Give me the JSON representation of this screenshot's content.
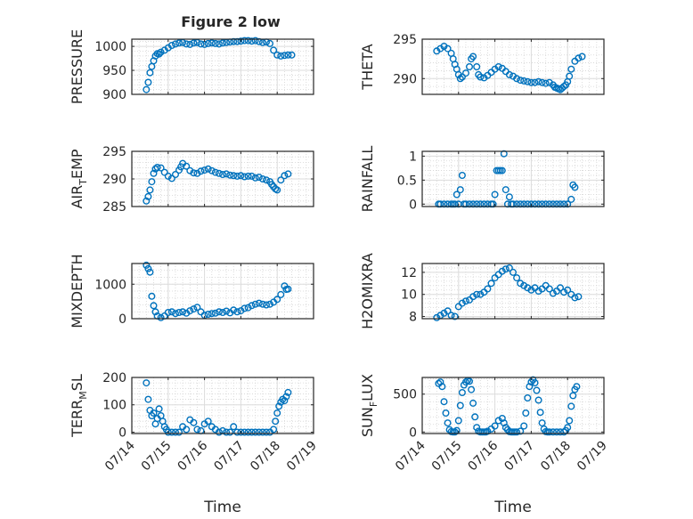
{
  "figure": {
    "title": "Figure 2 low"
  },
  "chart_data": [
    {
      "id": "pressure",
      "type": "scatter",
      "title": "Figure 2 low",
      "ylabel": {
        "main": "PRESSURE"
      },
      "yticks": [
        900,
        950,
        1000
      ],
      "ytick_labels": [
        "900",
        "950",
        "1000"
      ],
      "ylim": [
        900,
        1015
      ],
      "x": [
        14.4,
        14.45,
        14.5,
        14.55,
        14.6,
        14.65,
        14.7,
        14.75,
        14.8,
        14.9,
        15.0,
        15.1,
        15.2,
        15.3,
        15.4,
        15.5,
        15.6,
        15.7,
        15.8,
        15.9,
        16.0,
        16.1,
        16.2,
        16.3,
        16.4,
        16.5,
        16.6,
        16.7,
        16.8,
        16.9,
        17.0,
        17.1,
        17.2,
        17.3,
        17.4,
        17.5,
        17.6,
        17.7,
        17.8,
        17.9,
        18.0,
        18.1,
        18.2,
        18.3,
        18.4
      ],
      "y": [
        910,
        925,
        945,
        958,
        970,
        980,
        985,
        984,
        988,
        992,
        997,
        1002,
        1005,
        1007,
        1008,
        1005,
        1004,
        1007,
        1008,
        1005,
        1004,
        1006,
        1007,
        1006,
        1005,
        1007,
        1008,
        1009,
        1010,
        1010,
        1011,
        1012,
        1012,
        1011,
        1012,
        1010,
        1008,
        1009,
        1006,
        992,
        982,
        980,
        981,
        982,
        982
      ],
      "series_color": "#0072BD"
    },
    {
      "id": "theta",
      "type": "scatter",
      "ylabel": {
        "main": "THETA"
      },
      "yticks": [
        290,
        295
      ],
      "ytick_labels": [
        "290",
        "295"
      ],
      "ylim": [
        288,
        295
      ],
      "x": [
        14.4,
        14.5,
        14.6,
        14.7,
        14.8,
        14.85,
        14.9,
        14.95,
        15.0,
        15.05,
        15.1,
        15.2,
        15.3,
        15.35,
        15.4,
        15.5,
        15.55,
        15.6,
        15.7,
        15.8,
        15.9,
        16.0,
        16.1,
        16.2,
        16.3,
        16.4,
        16.5,
        16.6,
        16.7,
        16.8,
        16.9,
        17.0,
        17.1,
        17.2,
        17.3,
        17.4,
        17.5,
        17.6,
        17.65,
        17.7,
        17.75,
        17.8,
        17.85,
        17.9,
        17.95,
        18.0,
        18.05,
        18.1,
        18.2,
        18.3,
        18.4
      ],
      "y": [
        293.5,
        293.8,
        294.1,
        293.8,
        293.2,
        292.5,
        291.8,
        291.2,
        290.5,
        290.0,
        290.2,
        290.7,
        291.5,
        292.5,
        292.8,
        291.5,
        290.5,
        290.2,
        290.1,
        290.4,
        290.8,
        291.2,
        291.5,
        291.3,
        290.9,
        290.5,
        290.3,
        290.0,
        289.8,
        289.7,
        289.6,
        289.5,
        289.5,
        289.6,
        289.5,
        289.4,
        289.5,
        289.2,
        288.9,
        288.8,
        288.7,
        288.6,
        288.8,
        289.0,
        289.2,
        289.6,
        290.3,
        291.2,
        292.2,
        292.6,
        292.8
      ],
      "series_color": "#0072BD"
    },
    {
      "id": "air_temp",
      "type": "scatter",
      "ylabel": {
        "main": "AIR",
        "sub": "T",
        "rest": "EMP"
      },
      "yticks": [
        285,
        290,
        295
      ],
      "ytick_labels": [
        "285",
        "290",
        "295"
      ],
      "ylim": [
        285,
        295
      ],
      "x": [
        14.4,
        14.45,
        14.5,
        14.55,
        14.6,
        14.65,
        14.7,
        14.8,
        14.9,
        15.0,
        15.1,
        15.2,
        15.3,
        15.35,
        15.4,
        15.5,
        15.6,
        15.7,
        15.8,
        15.9,
        16.0,
        16.1,
        16.2,
        16.3,
        16.4,
        16.5,
        16.6,
        16.7,
        16.8,
        16.9,
        17.0,
        17.1,
        17.2,
        17.3,
        17.4,
        17.5,
        17.6,
        17.7,
        17.8,
        17.85,
        17.9,
        17.95,
        18.0,
        18.1,
        18.2,
        18.3
      ],
      "y": [
        286.0,
        286.8,
        288.0,
        289.5,
        291.0,
        291.8,
        292.1,
        292.0,
        291.2,
        290.5,
        290.1,
        290.8,
        291.6,
        292.2,
        292.8,
        292.3,
        291.5,
        291.1,
        291.0,
        291.4,
        291.6,
        291.8,
        291.5,
        291.2,
        291.0,
        290.8,
        290.9,
        290.7,
        290.6,
        290.5,
        290.6,
        290.4,
        290.5,
        290.5,
        290.2,
        290.3,
        290.0,
        289.8,
        289.5,
        289.0,
        288.6,
        288.2,
        288.0,
        289.8,
        290.6,
        290.9
      ],
      "series_color": "#0072BD"
    },
    {
      "id": "rainfall",
      "type": "scatter",
      "ylabel": {
        "main": "RAINFALL"
      },
      "yticks": [
        0,
        0.5,
        1
      ],
      "ytick_labels": [
        "0",
        "0.5",
        "1"
      ],
      "ylim": [
        -0.05,
        1.1
      ],
      "x": [
        14.45,
        14.5,
        14.6,
        14.7,
        14.8,
        14.85,
        14.9,
        14.95,
        15.0,
        15.05,
        15.1,
        15.15,
        15.2,
        15.3,
        15.4,
        15.5,
        15.6,
        15.7,
        15.8,
        15.9,
        15.95,
        16.0,
        16.05,
        16.1,
        16.15,
        16.2,
        16.25,
        16.3,
        16.35,
        16.4,
        16.45,
        16.5,
        16.6,
        16.7,
        16.8,
        16.9,
        17.0,
        17.1,
        17.2,
        17.3,
        17.4,
        17.5,
        17.6,
        17.7,
        17.8,
        17.9,
        18.0,
        18.1,
        18.15,
        18.2
      ],
      "y": [
        0,
        0,
        0,
        0,
        0,
        0,
        0,
        0.2,
        0,
        0.3,
        0.6,
        0,
        0,
        0,
        0,
        0,
        0,
        0,
        0,
        0,
        0,
        0.2,
        0.7,
        0.7,
        0.7,
        0.7,
        1.05,
        0.3,
        0,
        0.15,
        0,
        0,
        0,
        0,
        0,
        0,
        0,
        0,
        0,
        0,
        0,
        0,
        0,
        0,
        0,
        0,
        0,
        0.1,
        0.4,
        0.35
      ],
      "series_color": "#0072BD"
    },
    {
      "id": "mixdepth",
      "type": "scatter",
      "ylabel": {
        "main": "MIXDEPTH"
      },
      "yticks": [
        0,
        1000
      ],
      "ytick_labels": [
        "0",
        "1000"
      ],
      "ylim": [
        0,
        1600
      ],
      "x": [
        14.4,
        14.45,
        14.5,
        14.55,
        14.6,
        14.65,
        14.7,
        14.8,
        14.9,
        15.0,
        15.1,
        15.2,
        15.3,
        15.4,
        15.5,
        15.6,
        15.7,
        15.8,
        15.9,
        16.0,
        16.1,
        16.2,
        16.3,
        16.4,
        16.5,
        16.6,
        16.7,
        16.8,
        16.9,
        17.0,
        17.1,
        17.2,
        17.3,
        17.4,
        17.5,
        17.6,
        17.7,
        17.8,
        17.9,
        18.0,
        18.1,
        18.2,
        18.25,
        18.3
      ],
      "y": [
        1550,
        1450,
        1350,
        650,
        380,
        200,
        80,
        30,
        80,
        180,
        200,
        150,
        180,
        200,
        160,
        230,
        280,
        330,
        200,
        100,
        130,
        150,
        160,
        200,
        180,
        220,
        170,
        250,
        200,
        230,
        300,
        320,
        380,
        420,
        450,
        420,
        400,
        420,
        480,
        560,
        700,
        950,
        850,
        860
      ],
      "series_color": "#0072BD"
    },
    {
      "id": "h2omixra",
      "type": "scatter",
      "ylabel": {
        "main": "H2OMIXRA"
      },
      "yticks": [
        8,
        10,
        12
      ],
      "ytick_labels": [
        "8",
        "10",
        "12"
      ],
      "ylim": [
        7.8,
        12.8
      ],
      "x": [
        14.4,
        14.5,
        14.6,
        14.7,
        14.8,
        14.9,
        15.0,
        15.1,
        15.2,
        15.3,
        15.4,
        15.5,
        15.6,
        15.7,
        15.8,
        15.9,
        16.0,
        16.1,
        16.2,
        16.3,
        16.4,
        16.5,
        16.6,
        16.7,
        16.8,
        16.9,
        17.0,
        17.1,
        17.2,
        17.3,
        17.4,
        17.5,
        17.6,
        17.7,
        17.8,
        17.9,
        18.0,
        18.1,
        18.2,
        18.3
      ],
      "y": [
        7.9,
        8.1,
        8.3,
        8.5,
        8.1,
        8.0,
        8.9,
        9.2,
        9.4,
        9.5,
        9.8,
        10.0,
        10.0,
        10.2,
        10.5,
        11.0,
        11.5,
        11.8,
        12.1,
        12.3,
        12.4,
        12.0,
        11.5,
        11.0,
        10.8,
        10.6,
        10.4,
        10.6,
        10.3,
        10.5,
        10.8,
        10.5,
        10.1,
        10.3,
        10.6,
        10.2,
        10.4,
        10.0,
        9.7,
        9.8
      ],
      "series_color": "#0072BD"
    },
    {
      "id": "terr_msl",
      "type": "scatter",
      "ylabel": {
        "main": "TERR",
        "sub": "M",
        "rest": "SL"
      },
      "yticks": [
        0,
        100,
        200
      ],
      "ytick_labels": [
        "0",
        "100",
        "200"
      ],
      "ylim": [
        -5,
        200
      ],
      "x": [
        14.4,
        14.45,
        14.5,
        14.55,
        14.6,
        14.65,
        14.7,
        14.75,
        14.8,
        14.85,
        14.9,
        14.95,
        15.0,
        15.1,
        15.2,
        15.3,
        15.4,
        15.5,
        15.6,
        15.7,
        15.8,
        15.9,
        16.0,
        16.1,
        16.2,
        16.3,
        16.4,
        16.5,
        16.6,
        16.7,
        16.8,
        16.9,
        17.0,
        17.1,
        17.2,
        17.3,
        17.4,
        17.5,
        17.6,
        17.7,
        17.8,
        17.9,
        17.95,
        18.0,
        18.05,
        18.1,
        18.15,
        18.2,
        18.25,
        18.3
      ],
      "y": [
        180,
        120,
        80,
        60,
        70,
        30,
        50,
        85,
        60,
        40,
        20,
        10,
        0,
        0,
        0,
        0,
        20,
        10,
        45,
        35,
        10,
        5,
        30,
        40,
        20,
        10,
        0,
        5,
        0,
        0,
        20,
        0,
        0,
        0,
        0,
        0,
        0,
        0,
        0,
        0,
        0,
        10,
        40,
        70,
        95,
        110,
        120,
        115,
        130,
        145
      ],
      "series_color": "#0072BD"
    },
    {
      "id": "sun_flux",
      "type": "scatter",
      "ylabel": {
        "main": "SUN",
        "sub": "F",
        "rest": "LUX"
      },
      "yticks": [
        0,
        500
      ],
      "ytick_labels": [
        "0",
        "500"
      ],
      "ylim": [
        -20,
        720
      ],
      "x": [
        14.45,
        14.5,
        14.55,
        14.6,
        14.65,
        14.7,
        14.75,
        14.8,
        14.85,
        14.9,
        14.95,
        15.0,
        15.05,
        15.1,
        15.15,
        15.2,
        15.25,
        15.3,
        15.35,
        15.4,
        15.45,
        15.5,
        15.55,
        15.6,
        15.65,
        15.7,
        15.75,
        15.8,
        15.9,
        16.0,
        16.1,
        16.2,
        16.25,
        16.3,
        16.35,
        16.4,
        16.45,
        16.5,
        16.55,
        16.6,
        16.7,
        16.8,
        16.85,
        16.9,
        16.95,
        17.0,
        17.05,
        17.1,
        17.15,
        17.2,
        17.25,
        17.3,
        17.35,
        17.4,
        17.45,
        17.5,
        17.6,
        17.7,
        17.8,
        17.9,
        17.95,
        18.0,
        18.05,
        18.1,
        18.15,
        18.2,
        18.25
      ],
      "y": [
        640,
        660,
        600,
        400,
        250,
        120,
        30,
        5,
        0,
        0,
        20,
        150,
        350,
        520,
        620,
        660,
        680,
        670,
        560,
        380,
        200,
        60,
        10,
        0,
        0,
        0,
        0,
        10,
        40,
        80,
        150,
        180,
        120,
        60,
        30,
        5,
        0,
        0,
        0,
        0,
        10,
        80,
        250,
        450,
        600,
        660,
        690,
        650,
        550,
        420,
        260,
        120,
        40,
        5,
        0,
        0,
        0,
        0,
        0,
        0,
        20,
        60,
        150,
        340,
        480,
        560,
        600
      ],
      "series_color": "#0072BD"
    }
  ],
  "x_axis": {
    "xlim": [
      14,
      19
    ],
    "ticks": [
      14,
      15,
      16,
      17,
      18,
      19
    ],
    "tick_labels": [
      "07/14",
      "07/15",
      "07/16",
      "07/17",
      "07/18",
      "07/19"
    ],
    "label": "Time"
  }
}
